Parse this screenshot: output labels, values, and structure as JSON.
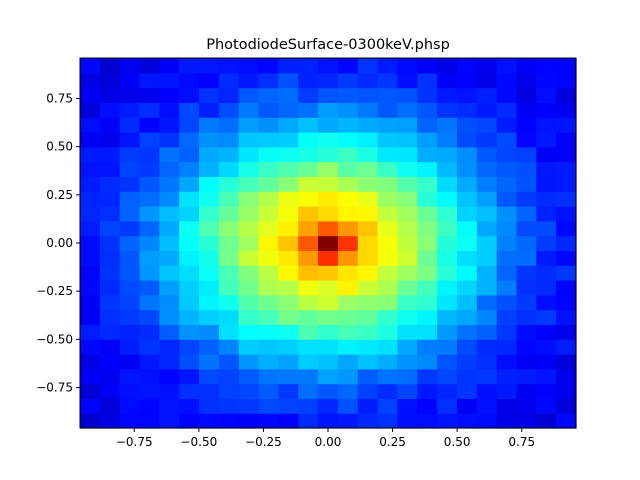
{
  "chart_data": {
    "type": "heatmap",
    "title": "PhotodiodeSurface-0300keV.phsp",
    "xlabel": "",
    "ylabel": "",
    "xlim": [
      -0.96,
      0.96
    ],
    "ylim": [
      -0.96,
      0.96
    ],
    "grid": false,
    "x_ticks": [
      -0.75,
      -0.5,
      -0.25,
      0.0,
      0.25,
      0.5,
      0.75
    ],
    "y_ticks": [
      -0.75,
      -0.5,
      -0.25,
      0.0,
      0.25,
      0.5,
      0.75
    ],
    "x_tick_labels": [
      "−0.75",
      "−0.50",
      "−0.25",
      "0.00",
      "0.25",
      "0.50",
      "0.75"
    ],
    "y_tick_labels": [
      "0.75",
      "0.50",
      "0.25",
      "0.00",
      "−0.25",
      "−0.50",
      "−0.75"
    ],
    "colormap": "jet",
    "bins": {
      "nx": 25,
      "ny": 25
    },
    "distribution": {
      "shape": "radial gaussian with sharp central peak",
      "peak_center": [
        0.0,
        0.0
      ],
      "peak_value": 1.0,
      "peak_halo_value": 0.68,
      "core_sigma": 0.07,
      "broad_sigma": 0.42,
      "broad_amplitude": 0.6,
      "floor": 0.1
    }
  }
}
